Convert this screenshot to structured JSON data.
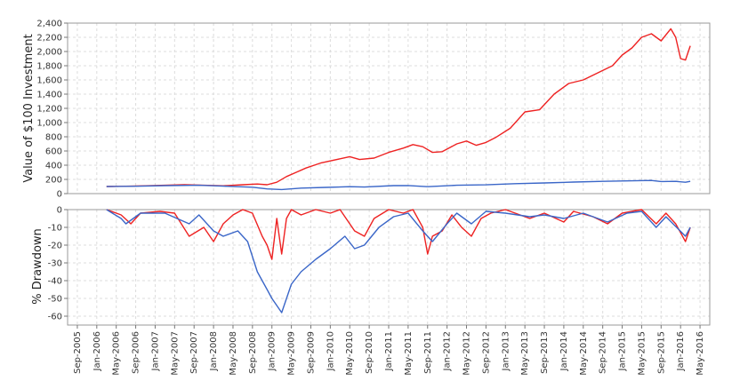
{
  "colors": {
    "strategy_series": "#ee2222",
    "benchmark_series": "#3a66c8",
    "panel_border": "#999999",
    "grid": "#dcdcdc",
    "background": "#ffffff"
  },
  "chart_data": [
    {
      "type": "line",
      "title": "",
      "xlabel": "",
      "ylabel": "Value of $100 Investment",
      "ylim": [
        0,
        2400
      ],
      "yticks": [
        0,
        200,
        400,
        600,
        800,
        1000,
        1200,
        1400,
        1600,
        1800,
        2000,
        2200,
        2400
      ],
      "ytick_labels": [
        "0",
        "200",
        "400",
        "600",
        "800",
        "1,000",
        "1,200",
        "1,400",
        "1,600",
        "1,800",
        "2,000",
        "2,200",
        "2,400"
      ],
      "grid": true,
      "legend": "none",
      "series": [
        {
          "color": "#ee2222",
          "points": [
            [
              "2006-03",
              100
            ],
            [
              "2006-07",
              104
            ],
            [
              "2006-11",
              110
            ],
            [
              "2007-03",
              118
            ],
            [
              "2007-07",
              125
            ],
            [
              "2007-11",
              118
            ],
            [
              "2008-03",
              110
            ],
            [
              "2008-07",
              125
            ],
            [
              "2008-10",
              135
            ],
            [
              "2008-12",
              125
            ],
            [
              "2009-02",
              160
            ],
            [
              "2009-04",
              240
            ],
            [
              "2009-06",
              300
            ],
            [
              "2009-08",
              360
            ],
            [
              "2009-11",
              430
            ],
            [
              "2010-03",
              490
            ],
            [
              "2010-05",
              520
            ],
            [
              "2010-07",
              480
            ],
            [
              "2010-10",
              500
            ],
            [
              "2011-01",
              580
            ],
            [
              "2011-04",
              640
            ],
            [
              "2011-06",
              690
            ],
            [
              "2011-08",
              660
            ],
            [
              "2011-10",
              580
            ],
            [
              "2011-12",
              590
            ],
            [
              "2012-03",
              700
            ],
            [
              "2012-05",
              740
            ],
            [
              "2012-07",
              680
            ],
            [
              "2012-09",
              720
            ],
            [
              "2012-11",
              790
            ],
            [
              "2013-02",
              920
            ],
            [
              "2013-05",
              1150
            ],
            [
              "2013-08",
              1180
            ],
            [
              "2013-11",
              1400
            ],
            [
              "2014-02",
              1550
            ],
            [
              "2014-05",
              1600
            ],
            [
              "2014-08",
              1700
            ],
            [
              "2014-11",
              1800
            ],
            [
              "2015-01",
              1950
            ],
            [
              "2015-03",
              2050
            ],
            [
              "2015-05",
              2200
            ],
            [
              "2015-07",
              2250
            ],
            [
              "2015-09",
              2150
            ],
            [
              "2015-11",
              2320
            ],
            [
              "2015-12",
              2200
            ],
            [
              "2016-01",
              1900
            ],
            [
              "2016-02",
              1880
            ],
            [
              "2016-03",
              2080
            ]
          ]
        },
        {
          "color": "#3a66c8",
          "points": [
            [
              "2006-03",
              100
            ],
            [
              "2006-09",
              104
            ],
            [
              "2007-03",
              112
            ],
            [
              "2007-10",
              118
            ],
            [
              "2008-03",
              105
            ],
            [
              "2008-09",
              90
            ],
            [
              "2008-12",
              66
            ],
            [
              "2009-03",
              58
            ],
            [
              "2009-07",
              78
            ],
            [
              "2009-12",
              88
            ],
            [
              "2010-05",
              98
            ],
            [
              "2010-08",
              92
            ],
            [
              "2011-02",
              112
            ],
            [
              "2011-05",
              114
            ],
            [
              "2011-09",
              98
            ],
            [
              "2012-03",
              118
            ],
            [
              "2012-09",
              124
            ],
            [
              "2013-03",
              140
            ],
            [
              "2013-09",
              150
            ],
            [
              "2014-03",
              162
            ],
            [
              "2014-09",
              172
            ],
            [
              "2015-03",
              180
            ],
            [
              "2015-07",
              185
            ],
            [
              "2015-09",
              170
            ],
            [
              "2015-12",
              172
            ],
            [
              "2016-02",
              160
            ],
            [
              "2016-03",
              172
            ]
          ]
        }
      ]
    },
    {
      "type": "line",
      "title": "",
      "xlabel": "",
      "ylabel": "% Drawdown",
      "ylim": [
        -65,
        0
      ],
      "yticks": [
        0,
        -10,
        -20,
        -30,
        -40,
        -50,
        -60
      ],
      "ytick_labels": [
        "0",
        "-10",
        "-20",
        "-30",
        "-40",
        "-50",
        "-60"
      ],
      "grid": true,
      "legend": "none",
      "x_tick_labels": [
        "Sep-2005",
        "Jan-2006",
        "May-2006",
        "Sep-2006",
        "Jan-2007",
        "May-2007",
        "Sep-2007",
        "Jan-2008",
        "May-2008",
        "Sep-2008",
        "Jan-2009",
        "May-2009",
        "Sep-2009",
        "Jan-2010",
        "May-2010",
        "Sep-2010",
        "Jan-2011",
        "May-2011",
        "Sep-2011",
        "Jan-2012",
        "May-2012",
        "Sep-2012",
        "Jan-2013",
        "May-2013",
        "Sep-2013",
        "Jan-2014",
        "May-2014",
        "Sep-2014",
        "Jan-2015",
        "May-2015",
        "Sep-2015",
        "Jan-2016",
        "May-2016"
      ],
      "series": [
        {
          "color": "#ee2222",
          "points": [
            [
              "2006-03",
              0
            ],
            [
              "2006-06",
              -3
            ],
            [
              "2006-08",
              -8
            ],
            [
              "2006-10",
              -2
            ],
            [
              "2007-02",
              -1
            ],
            [
              "2007-05",
              -2
            ],
            [
              "2007-08",
              -15
            ],
            [
              "2007-11",
              -10
            ],
            [
              "2008-01",
              -18
            ],
            [
              "2008-03",
              -8
            ],
            [
              "2008-05",
              -3
            ],
            [
              "2008-07",
              0
            ],
            [
              "2008-09",
              -2
            ],
            [
              "2008-11",
              -15
            ],
            [
              "2008-12",
              -20
            ],
            [
              "2009-01",
              -28
            ],
            [
              "2009-02",
              -5
            ],
            [
              "2009-03",
              -25
            ],
            [
              "2009-04",
              -5
            ],
            [
              "2009-05",
              0
            ],
            [
              "2009-07",
              -3
            ],
            [
              "2009-10",
              0
            ],
            [
              "2010-01",
              -2
            ],
            [
              "2010-03",
              0
            ],
            [
              "2010-06",
              -12
            ],
            [
              "2010-08",
              -15
            ],
            [
              "2010-10",
              -5
            ],
            [
              "2011-01",
              0
            ],
            [
              "2011-04",
              -2
            ],
            [
              "2011-06",
              0
            ],
            [
              "2011-08",
              -10
            ],
            [
              "2011-09",
              -25
            ],
            [
              "2011-10",
              -15
            ],
            [
              "2011-12",
              -12
            ],
            [
              "2012-02",
              -3
            ],
            [
              "2012-04",
              -10
            ],
            [
              "2012-06",
              -15
            ],
            [
              "2012-08",
              -5
            ],
            [
              "2012-10",
              -2
            ],
            [
              "2013-01",
              0
            ],
            [
              "2013-06",
              -5
            ],
            [
              "2013-09",
              -2
            ],
            [
              "2014-01",
              -7
            ],
            [
              "2014-03",
              -1
            ],
            [
              "2014-07",
              -4
            ],
            [
              "2014-10",
              -8
            ],
            [
              "2015-01",
              -2
            ],
            [
              "2015-05",
              0
            ],
            [
              "2015-08",
              -8
            ],
            [
              "2015-10",
              -2
            ],
            [
              "2015-12",
              -8
            ],
            [
              "2016-02",
              -18
            ],
            [
              "2016-03",
              -10
            ]
          ]
        },
        {
          "color": "#3a66c8",
          "points": [
            [
              "2006-03",
              0
            ],
            [
              "2006-06",
              -5
            ],
            [
              "2006-07",
              -8
            ],
            [
              "2006-10",
              -2
            ],
            [
              "2007-03",
              -2
            ],
            [
              "2007-08",
              -8
            ],
            [
              "2007-10",
              -3
            ],
            [
              "2008-01",
              -12
            ],
            [
              "2008-03",
              -15
            ],
            [
              "2008-06",
              -12
            ],
            [
              "2008-08",
              -18
            ],
            [
              "2008-10",
              -35
            ],
            [
              "2008-12",
              -45
            ],
            [
              "2009-01",
              -50
            ],
            [
              "2009-03",
              -58
            ],
            [
              "2009-05",
              -42
            ],
            [
              "2009-07",
              -35
            ],
            [
              "2009-10",
              -28
            ],
            [
              "2010-01",
              -22
            ],
            [
              "2010-04",
              -15
            ],
            [
              "2010-06",
              -22
            ],
            [
              "2010-08",
              -20
            ],
            [
              "2010-11",
              -10
            ],
            [
              "2011-02",
              -4
            ],
            [
              "2011-05",
              -2
            ],
            [
              "2011-08",
              -12
            ],
            [
              "2011-10",
              -18
            ],
            [
              "2012-01",
              -8
            ],
            [
              "2012-03",
              -2
            ],
            [
              "2012-06",
              -8
            ],
            [
              "2012-09",
              -1
            ],
            [
              "2013-01",
              -2
            ],
            [
              "2013-06",
              -4
            ],
            [
              "2013-09",
              -3
            ],
            [
              "2014-01",
              -5
            ],
            [
              "2014-05",
              -2
            ],
            [
              "2014-10",
              -7
            ],
            [
              "2015-02",
              -2
            ],
            [
              "2015-05",
              -1
            ],
            [
              "2015-08",
              -10
            ],
            [
              "2015-10",
              -4
            ],
            [
              "2016-02",
              -15
            ],
            [
              "2016-03",
              -10
            ]
          ]
        }
      ]
    }
  ]
}
